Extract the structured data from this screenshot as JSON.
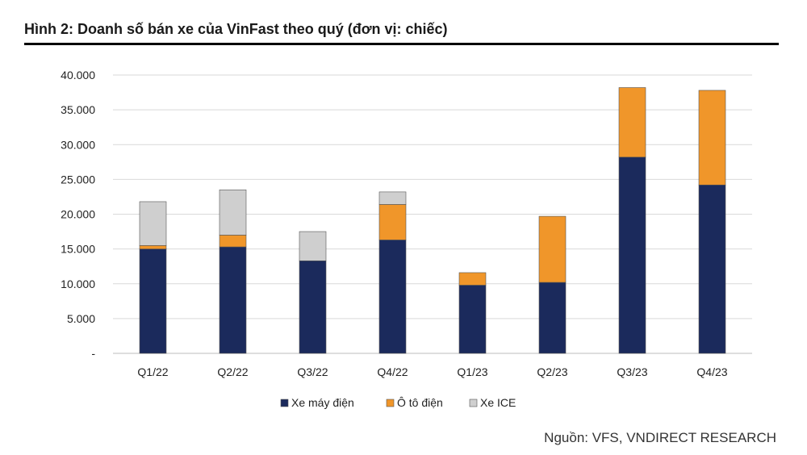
{
  "title": "Hình 2: Doanh số bán xe của VinFast theo quý (đơn vị: chiếc)",
  "source": "Nguồn: VFS, VNDIRECT RESEARCH",
  "colors": {
    "Xe máy điện": "#1b2a5c",
    "Ô tô điện": "#f0962a",
    "Xe ICE": "#cfcfcf"
  },
  "chart_data": {
    "type": "bar",
    "stacked": true,
    "categories": [
      "Q1/22",
      "Q2/22",
      "Q3/22",
      "Q4/22",
      "Q1/23",
      "Q2/23",
      "Q3/23",
      "Q4/23"
    ],
    "series": [
      {
        "name": "Xe máy điện",
        "values": [
          15000,
          15300,
          13300,
          16300,
          9800,
          10200,
          28200,
          24200
        ]
      },
      {
        "name": "Ô tô điện",
        "values": [
          500,
          1700,
          0,
          5100,
          1800,
          9500,
          10000,
          13600
        ]
      },
      {
        "name": "Xe ICE",
        "values": [
          6300,
          6500,
          4200,
          1800,
          0,
          0,
          0,
          0
        ]
      }
    ],
    "yticks": [
      "-",
      "5.000",
      "10.000",
      "15.000",
      "20.000",
      "25.000",
      "30.000",
      "35.000",
      "40.000"
    ],
    "ylim": [
      0,
      40000
    ],
    "grid": true,
    "legend": "bottom"
  }
}
